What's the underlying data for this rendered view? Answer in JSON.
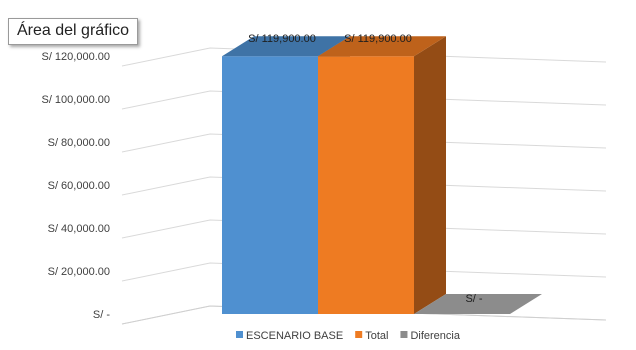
{
  "tooltip": {
    "text": "Área del gráfico"
  },
  "chart_data": {
    "type": "bar",
    "style": "3d-column",
    "categories": [
      "ESCENARIO BASE",
      "Total",
      "Diferencia"
    ],
    "values": [
      119900,
      119900,
      0
    ],
    "data_labels": [
      "S/ 119,900.00",
      "S/ 119,900.00",
      "S/ -"
    ],
    "colors": [
      "#4f90d0",
      "#ee7b22",
      "#8c8c8c"
    ],
    "ylim": [
      0,
      120000
    ],
    "yticks": [
      {
        "value": 0,
        "label": "S/ -"
      },
      {
        "value": 20000,
        "label": "S/ 20,000.00"
      },
      {
        "value": 40000,
        "label": "S/ 40,000.00"
      },
      {
        "value": 60000,
        "label": "S/ 60,000.00"
      },
      {
        "value": 80000,
        "label": "S/ 80,000.00"
      },
      {
        "value": 100000,
        "label": "S/ 100,000.00"
      },
      {
        "value": 120000,
        "label": "S/ 120,000.00"
      }
    ],
    "grid": true,
    "legend": {
      "position": "bottom",
      "entries": [
        "ESCENARIO BASE",
        "Total",
        "Diferencia"
      ]
    }
  }
}
